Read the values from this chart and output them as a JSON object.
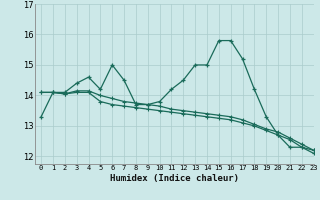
{
  "xlabel": "Humidex (Indice chaleur)",
  "bg_color": "#cce8e8",
  "line_color": "#1a6b5a",
  "grid_color": "#aacccc",
  "xlim": [
    -0.5,
    23
  ],
  "ylim": [
    11.75,
    16.6
  ],
  "yticks": [
    12,
    13,
    14,
    15,
    16,
    17
  ],
  "xticks": [
    0,
    1,
    2,
    3,
    4,
    5,
    6,
    7,
    8,
    9,
    10,
    11,
    12,
    13,
    14,
    15,
    16,
    17,
    18,
    19,
    20,
    21,
    22,
    23
  ],
  "x": [
    0,
    1,
    2,
    3,
    4,
    5,
    6,
    7,
    8,
    9,
    10,
    11,
    12,
    13,
    14,
    15,
    16,
    17,
    18,
    19,
    20,
    21,
    22,
    23
  ],
  "line1": [
    13.3,
    14.1,
    14.1,
    14.4,
    14.6,
    14.2,
    15.0,
    14.5,
    13.7,
    13.7,
    13.8,
    14.2,
    14.5,
    15.0,
    15.0,
    15.8,
    15.8,
    15.2,
    14.2,
    13.3,
    12.7,
    12.3,
    12.3,
    12.1
  ],
  "line2": [
    14.1,
    14.1,
    14.05,
    14.1,
    14.1,
    13.8,
    13.7,
    13.65,
    13.6,
    13.55,
    13.5,
    13.45,
    13.4,
    13.35,
    13.3,
    13.25,
    13.2,
    13.1,
    13.0,
    12.85,
    12.7,
    12.55,
    12.3,
    12.2
  ],
  "line3": [
    14.1,
    14.1,
    14.05,
    14.15,
    14.15,
    14.0,
    13.9,
    13.8,
    13.75,
    13.7,
    13.65,
    13.55,
    13.5,
    13.45,
    13.4,
    13.35,
    13.3,
    13.2,
    13.05,
    12.9,
    12.8,
    12.6,
    12.4,
    12.2
  ]
}
